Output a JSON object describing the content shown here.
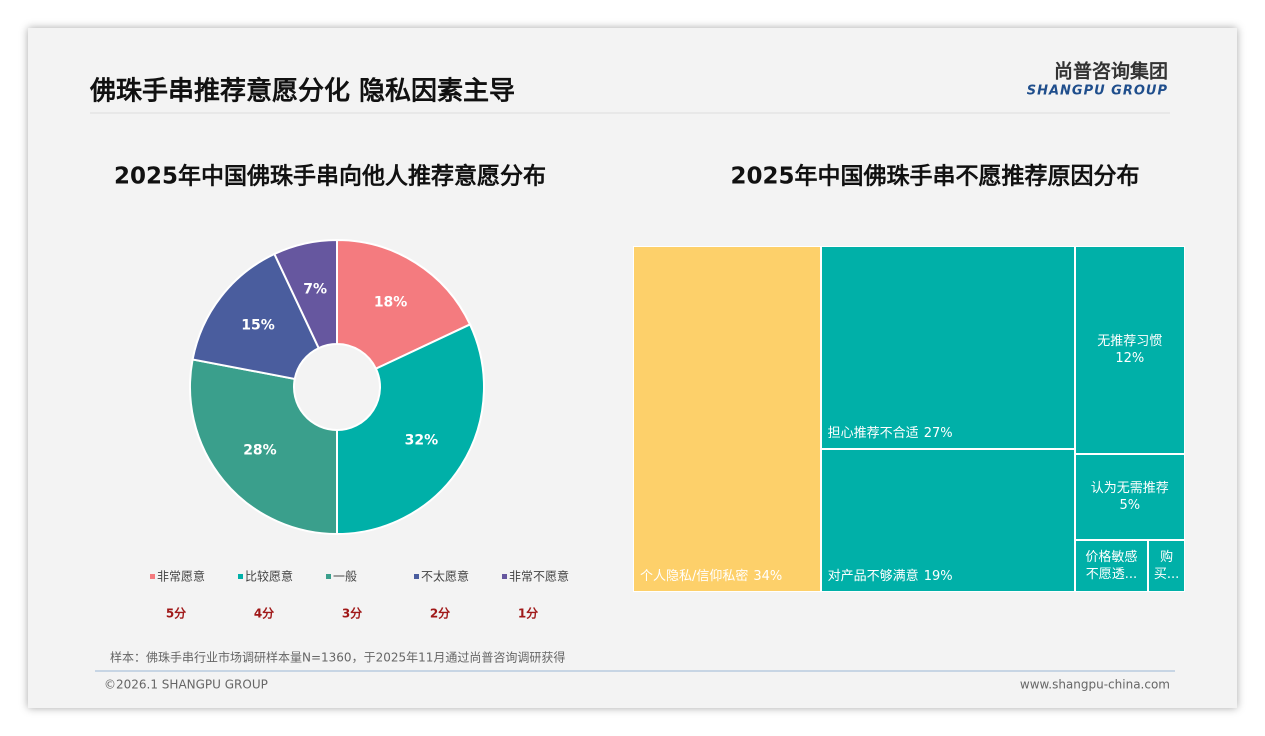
{
  "header": {
    "title": "佛珠手串推荐意愿分化 隐私因素主导",
    "logo": "尚普咨询集团",
    "logo_en": "SHANGPU GROUP"
  },
  "chart_data": [
    {
      "type": "pie",
      "title": "2025年中国佛珠手串向他人推荐意愿分布",
      "categories": [
        "非常愿意",
        "比较愿意",
        "一般",
        "不太愿意",
        "非常不愿意"
      ],
      "values": [
        18,
        32,
        28,
        15,
        7
      ],
      "value_labels": [
        "18%",
        "32%",
        "28%",
        "15%",
        "7%"
      ],
      "colors": [
        "#f47b7f",
        "#00b0a8",
        "#3a9f8c",
        "#4a5d9e",
        "#66579f"
      ],
      "scores": [
        "5分",
        "4分",
        "3分",
        "2分",
        "1分"
      ]
    },
    {
      "type": "treemap",
      "title": "2025年中国佛珠手串不愿推荐原因分布",
      "categories": [
        "个人隐私/信仰私密",
        "担心推荐不合适",
        "对产品不够满意",
        "无推荐习惯",
        "认为无需推荐",
        "价格敏感不愿透...",
        "购买..."
      ],
      "values": [
        34,
        27,
        19,
        12,
        5,
        2,
        1
      ],
      "value_labels": [
        "34%",
        "27%",
        "19%",
        "12%",
        "5%",
        null,
        null
      ],
      "colors": [
        "#fdd06a",
        "#00b0a8",
        "#00b0a8",
        "#00b0a8",
        "#00b0a8",
        "#00b0a8",
        "#00b0a8"
      ]
    }
  ],
  "footer": {
    "note": "样本：佛珠手串行业市场调研样本量N=1360，于2025年11月通过尚普咨询调研获得",
    "copyright": "©2026.1 SHANGPU GROUP",
    "website": "www.shangpu-china.com"
  }
}
